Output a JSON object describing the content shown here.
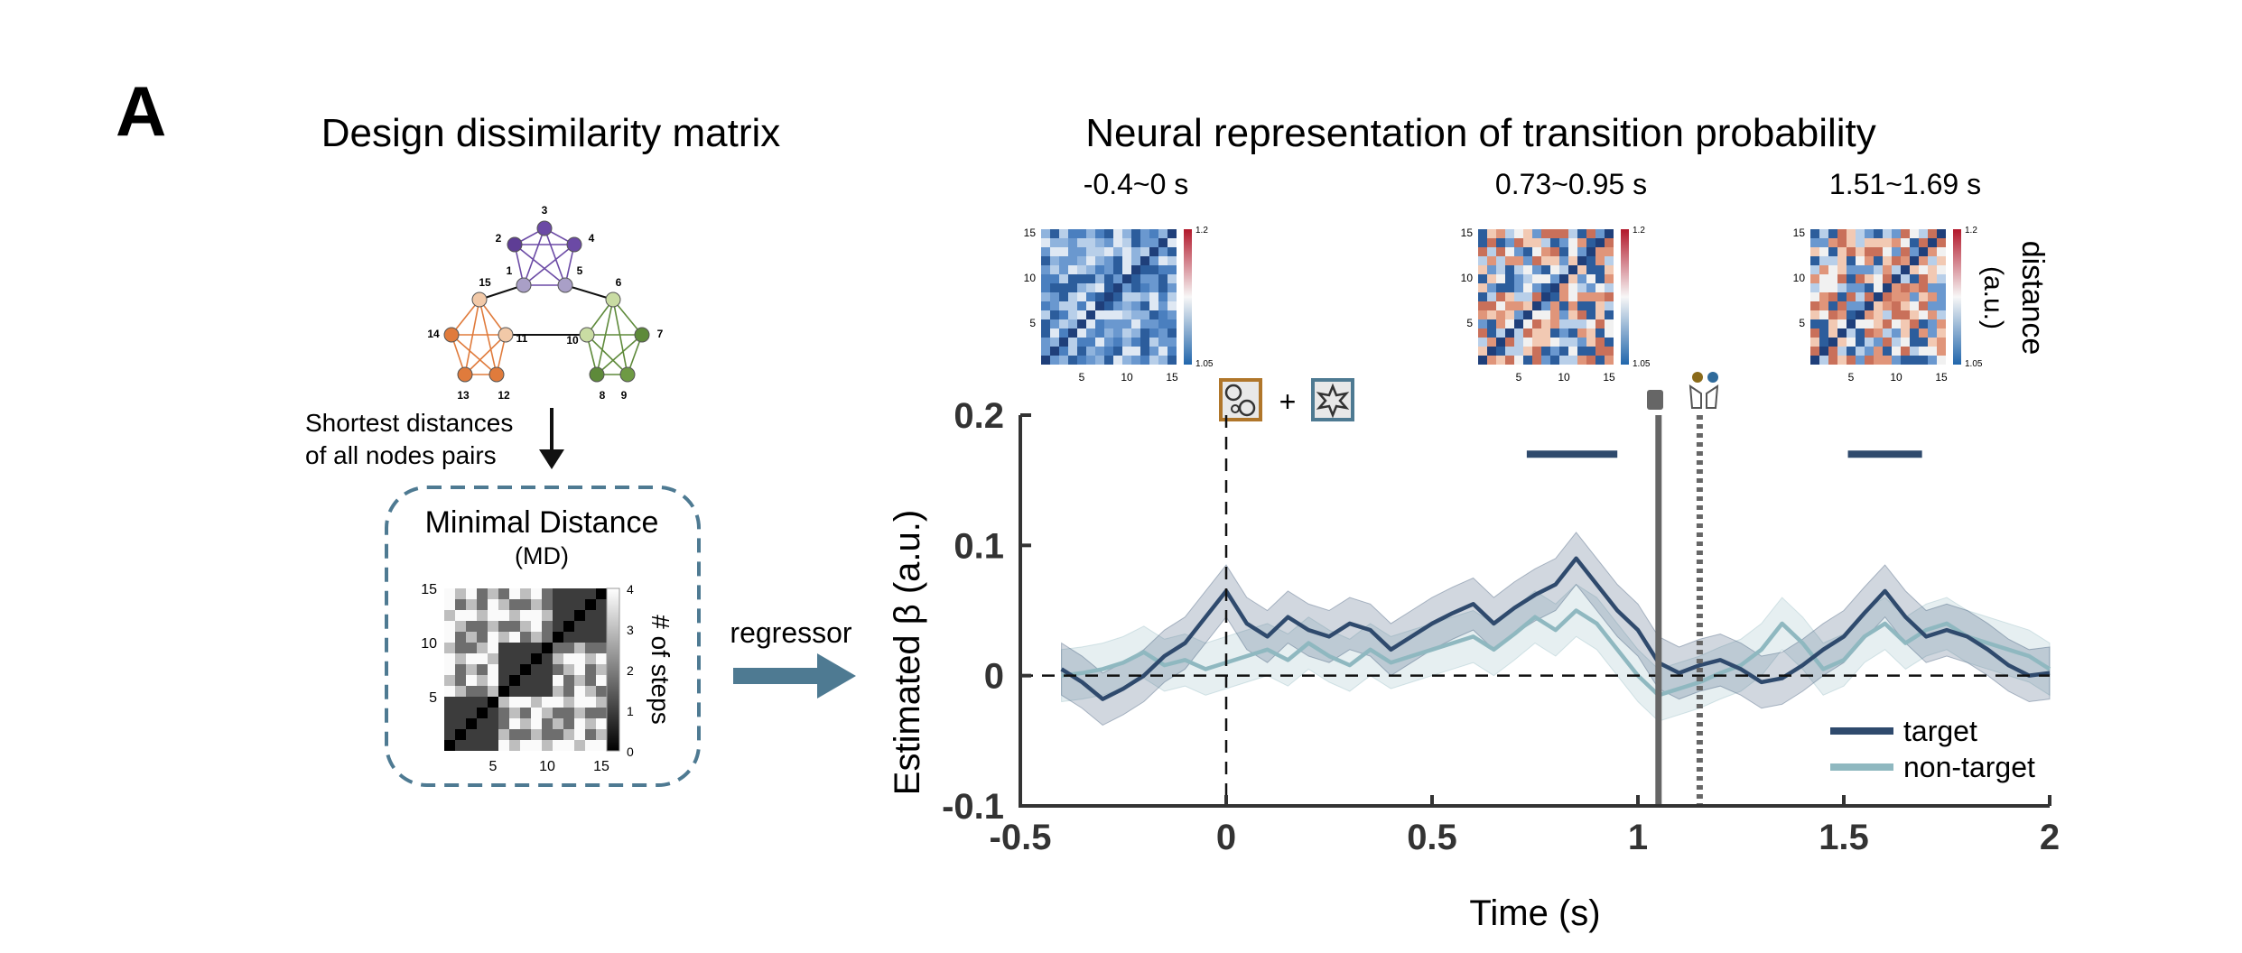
{
  "panel_label": "A",
  "left": {
    "title": "Design dissimilarity matrix",
    "graph_nodes": [
      {
        "id": "1",
        "color": "#a99fc7"
      },
      {
        "id": "2",
        "color": "#5e3d95"
      },
      {
        "id": "3",
        "color": "#6b4aa5"
      },
      {
        "id": "4",
        "color": "#6b4aa5"
      },
      {
        "id": "5",
        "color": "#a99fc7"
      },
      {
        "id": "6",
        "color": "#c9dca3"
      },
      {
        "id": "7",
        "color": "#5e8a3a"
      },
      {
        "id": "8",
        "color": "#5e8a3a"
      },
      {
        "id": "9",
        "color": "#6e9a44"
      },
      {
        "id": "10",
        "color": "#c9dca3"
      },
      {
        "id": "11",
        "color": "#f2c9a8"
      },
      {
        "id": "12",
        "color": "#e07b3c"
      },
      {
        "id": "13",
        "color": "#e07b3c"
      },
      {
        "id": "14",
        "color": "#e07b3c"
      },
      {
        "id": "15",
        "color": "#f2c9a8"
      }
    ],
    "arrow_text_line1": "Shortest distances",
    "arrow_text_line2": "of all nodes pairs",
    "box_title": "Minimal Distance",
    "box_subtitle": "(MD)",
    "md_yticks": [
      "15",
      "10",
      "5"
    ],
    "md_xticks": [
      "5",
      "10",
      "15"
    ],
    "md_colorbar_ticks": [
      "4",
      "3",
      "2",
      "1",
      "0"
    ],
    "md_colorbar_label": "# of steps",
    "regressor_label": "regressor",
    "colors": {
      "box_border": "#4e7a92",
      "arrow": "#4e7a92"
    }
  },
  "right": {
    "title": "Neural representation of transition probability",
    "matrices": [
      {
        "label": "-0.4~0 s",
        "cb_max": "1.2",
        "cb_min": "1.05"
      },
      {
        "label": "0.73~0.95 s",
        "cb_max": "1.2",
        "cb_min": "1.05"
      },
      {
        "label": "1.51~1.69 s",
        "cb_max": "1.2",
        "cb_min": "1.05"
      }
    ],
    "matrix_yticks": [
      "15",
      "10",
      "5"
    ],
    "matrix_xticks": [
      "5",
      "10",
      "15"
    ],
    "distance_label": "distance",
    "distance_unit": "(a.u.)",
    "plus_sign": "+"
  },
  "chart_data": {
    "type": "line",
    "xlabel": "Time (s)",
    "ylabel": "Estimated β (a.u.)",
    "xlim": [
      -0.5,
      2
    ],
    "ylim": [
      -0.1,
      0.2
    ],
    "xticks": [
      "-0.5",
      "0",
      "0.5",
      "1",
      "1.5",
      "2"
    ],
    "yticks": [
      "0.2",
      "0.1",
      "0",
      "-0.1"
    ],
    "vlines": [
      {
        "x": 0,
        "style": "dashed",
        "color": "#111111"
      },
      {
        "x": 1.05,
        "style": "solid",
        "color": "#666666"
      },
      {
        "x": 1.15,
        "style": "dotted",
        "color": "#666666"
      }
    ],
    "hline": {
      "y": 0,
      "style": "dashed"
    },
    "significance_bars": [
      {
        "x_start": 0.73,
        "x_end": 0.95,
        "y": 0.17
      },
      {
        "x_start": 1.51,
        "x_end": 1.69,
        "y": 0.17
      }
    ],
    "legend_position": "bottom-right",
    "series": [
      {
        "name": "target",
        "color": "#2f4a6d",
        "band_color": "#2f4a6d",
        "x": [
          -0.4,
          -0.35,
          -0.3,
          -0.25,
          -0.2,
          -0.15,
          -0.1,
          -0.05,
          0,
          0.05,
          0.1,
          0.15,
          0.2,
          0.25,
          0.3,
          0.35,
          0.4,
          0.45,
          0.5,
          0.55,
          0.6,
          0.65,
          0.7,
          0.75,
          0.8,
          0.85,
          0.9,
          0.95,
          1,
          1.05,
          1.1,
          1.15,
          1.2,
          1.25,
          1.3,
          1.35,
          1.4,
          1.45,
          1.5,
          1.55,
          1.6,
          1.65,
          1.7,
          1.75,
          1.8,
          1.85,
          1.9,
          1.95,
          2
        ],
        "y": [
          0.005,
          -0.005,
          -0.018,
          -0.01,
          0.0,
          0.015,
          0.025,
          0.045,
          0.065,
          0.04,
          0.03,
          0.045,
          0.035,
          0.03,
          0.04,
          0.035,
          0.02,
          0.03,
          0.04,
          0.048,
          0.055,
          0.04,
          0.052,
          0.062,
          0.07,
          0.09,
          0.07,
          0.05,
          0.035,
          0.01,
          0.002,
          0.008,
          0.012,
          0.005,
          -0.005,
          -0.002,
          0.008,
          0.02,
          0.03,
          0.048,
          0.065,
          0.045,
          0.03,
          0.035,
          0.03,
          0.02,
          0.008,
          0.0,
          0.002
        ],
        "band": 0.02
      },
      {
        "name": "non-target",
        "color": "#8fb8c0",
        "band_color": "#8fb8c0",
        "x": [
          -0.4,
          -0.35,
          -0.3,
          -0.25,
          -0.2,
          -0.15,
          -0.1,
          -0.05,
          0,
          0.05,
          0.1,
          0.15,
          0.2,
          0.25,
          0.3,
          0.35,
          0.4,
          0.45,
          0.5,
          0.55,
          0.6,
          0.65,
          0.7,
          0.75,
          0.8,
          0.85,
          0.9,
          0.95,
          1,
          1.05,
          1.1,
          1.15,
          1.2,
          1.25,
          1.3,
          1.35,
          1.4,
          1.45,
          1.5,
          1.55,
          1.6,
          1.65,
          1.7,
          1.75,
          1.8,
          1.85,
          1.9,
          1.95,
          2
        ],
        "y": [
          0.0,
          0.002,
          0.005,
          0.01,
          0.018,
          0.008,
          0.012,
          0.005,
          0.01,
          0.015,
          0.02,
          0.012,
          0.025,
          0.015,
          0.008,
          0.02,
          0.01,
          0.015,
          0.02,
          0.025,
          0.03,
          0.02,
          0.032,
          0.045,
          0.035,
          0.05,
          0.04,
          0.02,
          0.0,
          -0.015,
          -0.01,
          -0.005,
          0.002,
          0.008,
          0.02,
          0.04,
          0.025,
          0.005,
          0.012,
          0.03,
          0.04,
          0.025,
          0.035,
          0.04,
          0.03,
          0.025,
          0.02,
          0.015,
          0.005
        ],
        "band": 0.02
      }
    ]
  }
}
